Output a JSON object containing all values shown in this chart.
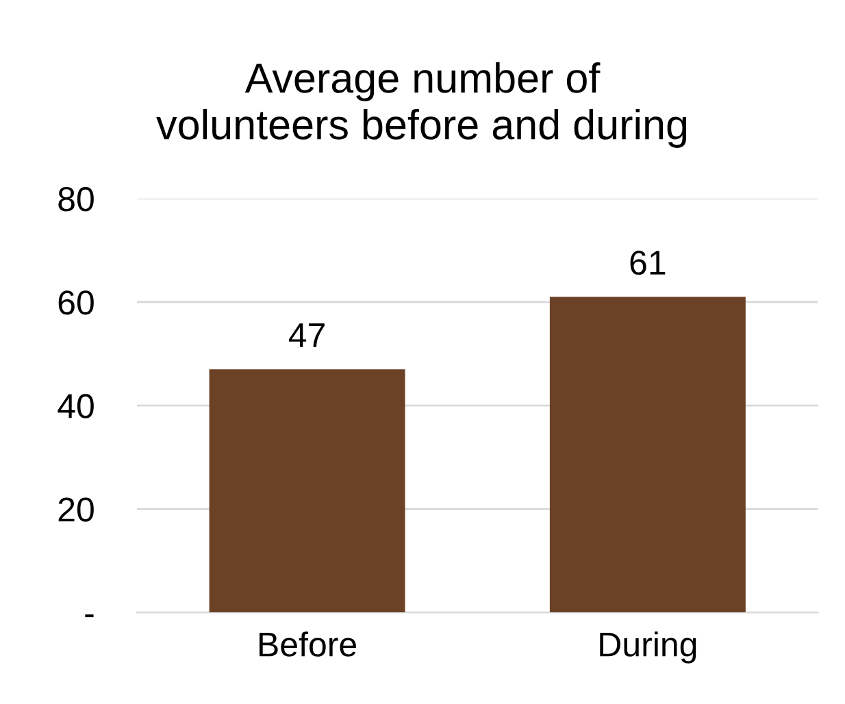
{
  "chart_data": {
    "type": "bar",
    "title": "Average number of\nvolunteers before and during",
    "categories": [
      "Before",
      "During"
    ],
    "values": [
      47,
      61
    ],
    "color": "#6b4226",
    "ylim": [
      0,
      80
    ],
    "yticks": [
      {
        "value": 0,
        "label": "-"
      },
      20,
      40,
      60,
      80
    ],
    "grid": "y",
    "data_labels": true
  }
}
